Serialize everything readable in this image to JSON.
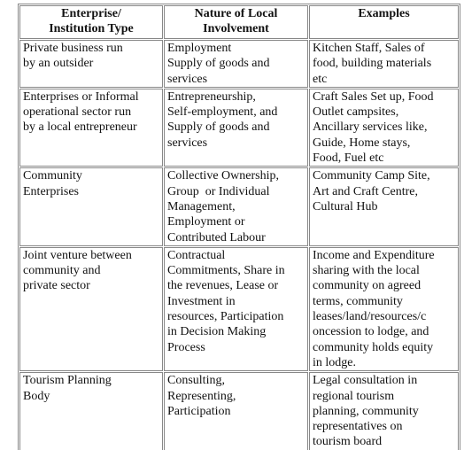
{
  "table": {
    "header": [
      [
        "Enterprise/",
        "Institution Type"
      ],
      [
        "Nature of Local",
        "Involvement"
      ],
      [
        "Examples"
      ]
    ],
    "rows": [
      [
        [
          "Private business run",
          "by an outsider"
        ],
        [
          "Employment",
          "Supply of goods and",
          "services"
        ],
        [
          "Kitchen Staff, Sales of",
          "food, building materials",
          "etc"
        ]
      ],
      [
        [
          "Enterprises or Informal",
          "operational sector run",
          "by a local entrepreneur"
        ],
        [
          "Entrepreneurship,",
          "Self-employment, and",
          "Supply of goods and",
          "services"
        ],
        [
          "Craft Sales Set up, Food",
          "Outlet campsites,",
          "Ancillary services like,",
          "Guide, Home stays,",
          "Food, Fuel etc"
        ]
      ],
      [
        [
          "Community",
          "Enterprises"
        ],
        [
          "Collective Ownership,",
          "Group  or Individual",
          "Management,",
          "Employment or",
          "Contributed Labour"
        ],
        [
          "Community Camp Site,",
          "Art and Craft Centre,",
          "Cultural Hub"
        ]
      ],
      [
        [
          "Joint venture between",
          "community and",
          "private sector"
        ],
        [
          "Contractual",
          "Commitments, Share in",
          "the revenues, Lease or",
          "Investment in",
          "resources, Participation",
          "in Decision Making",
          "Process"
        ],
        [
          "Income and Expenditure",
          "sharing with the local",
          "community on agreed",
          "terms, community",
          "leases/land/resources/c",
          "oncession to lodge, and",
          "community holds equity",
          "in lodge."
        ]
      ],
      [
        [
          "Tourism Planning",
          "Body"
        ],
        [
          "Consulting,",
          "Representing,",
          "Participation"
        ],
        [
          "Legal consultation in",
          "regional tourism",
          "planning, community",
          "representatives on",
          "tourism board"
        ]
      ]
    ]
  }
}
